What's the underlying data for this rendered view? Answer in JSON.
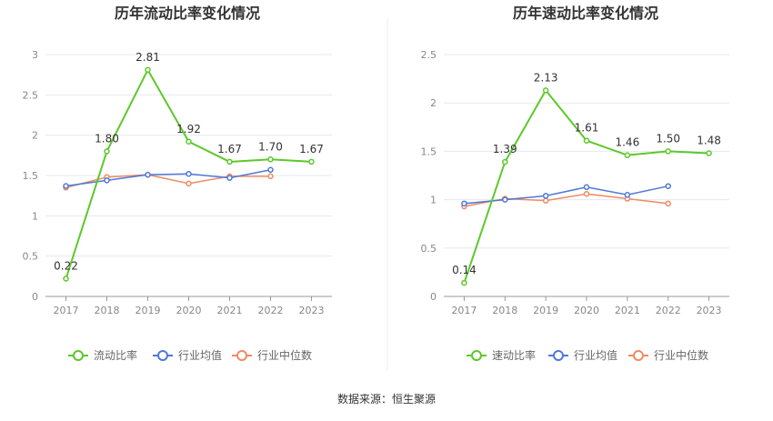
{
  "source_text": "数据来源：恒生聚源",
  "colors": {
    "primary": "#5cc82a",
    "industry_avg": "#4f78d6",
    "industry_median": "#ef8a62",
    "axis_text": "#888888",
    "grid": "#e6e8ee"
  },
  "chart_data": [
    {
      "type": "line",
      "title": "历年流动比率变化情况",
      "categories": [
        "2017",
        "2018",
        "2019",
        "2020",
        "2021",
        "2022",
        "2023"
      ],
      "ylim": [
        0,
        3
      ],
      "yticks": [
        "0",
        "0.5",
        "1",
        "1.5",
        "2",
        "2.5",
        "3"
      ],
      "grid": true,
      "legend_position": "bottom",
      "series": [
        {
          "name": "流动比率",
          "values": [
            0.22,
            1.8,
            2.81,
            1.92,
            1.67,
            1.7,
            1.67
          ],
          "labels": [
            "0.22",
            "1.80",
            "2.81",
            "1.92",
            "1.67",
            "1.70",
            "1.67"
          ]
        },
        {
          "name": "行业均值",
          "values": [
            1.37,
            1.44,
            1.51,
            1.52,
            1.47,
            1.57,
            null
          ]
        },
        {
          "name": "行业中位数",
          "values": [
            1.35,
            1.48,
            1.51,
            1.4,
            1.49,
            1.49,
            null
          ]
        }
      ]
    },
    {
      "type": "line",
      "title": "历年速动比率变化情况",
      "categories": [
        "2017",
        "2018",
        "2019",
        "2020",
        "2021",
        "2022",
        "2023"
      ],
      "ylim": [
        0,
        2.5
      ],
      "yticks": [
        "0",
        "0.5",
        "1",
        "1.5",
        "2",
        "2.5"
      ],
      "grid": true,
      "legend_position": "bottom",
      "series": [
        {
          "name": "速动比率",
          "values": [
            0.14,
            1.39,
            2.13,
            1.61,
            1.46,
            1.5,
            1.48
          ],
          "labels": [
            "0.14",
            "1.39",
            "2.13",
            "1.61",
            "1.46",
            "1.50",
            "1.48"
          ]
        },
        {
          "name": "行业均值",
          "values": [
            0.96,
            1.0,
            1.04,
            1.13,
            1.05,
            1.14,
            null
          ]
        },
        {
          "name": "行业中位数",
          "values": [
            0.93,
            1.01,
            0.99,
            1.06,
            1.01,
            0.96,
            null
          ]
        }
      ]
    }
  ]
}
